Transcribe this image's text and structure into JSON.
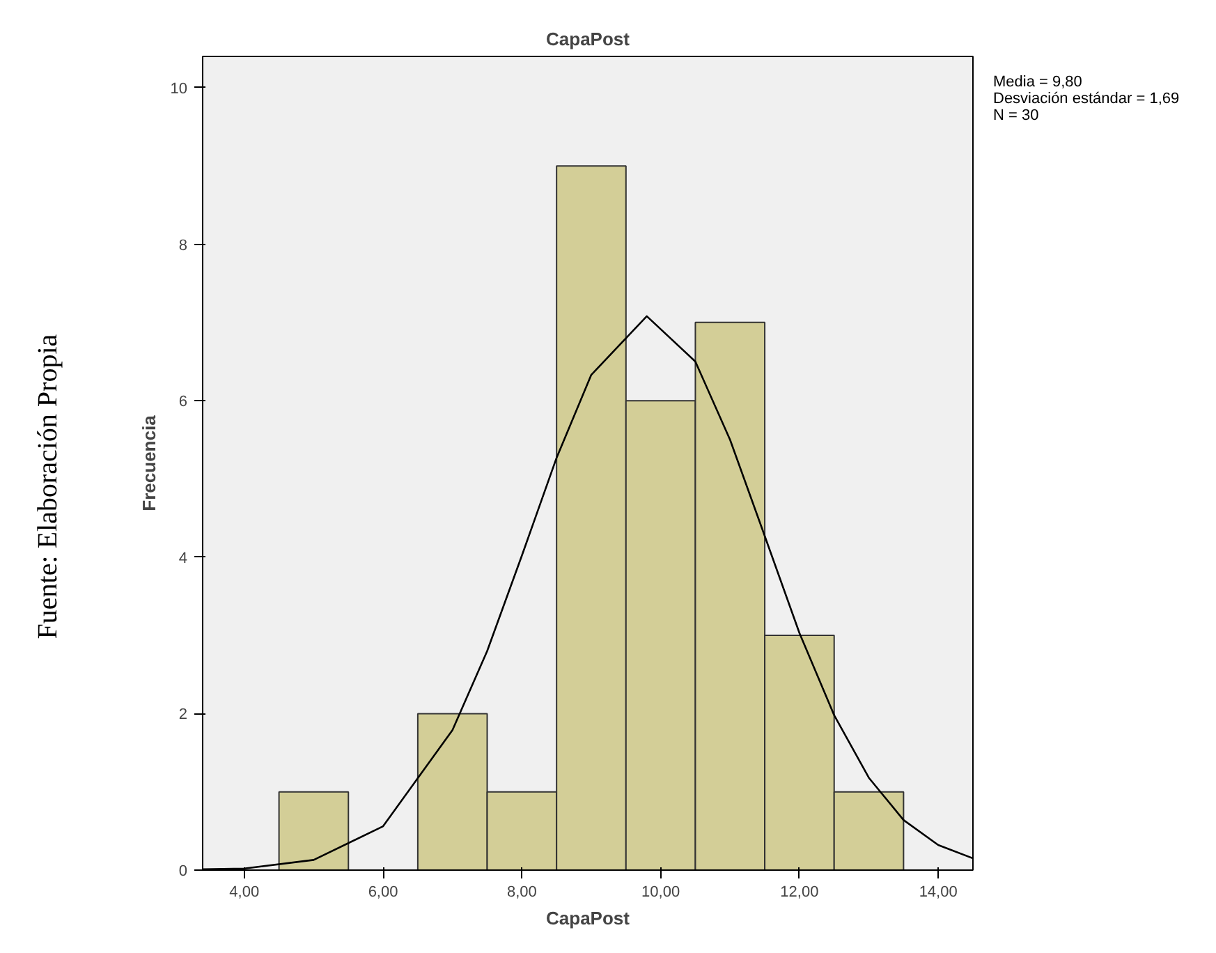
{
  "chart_data": {
    "type": "histogram",
    "title": "CapaPost",
    "xlabel": "CapaPost",
    "ylabel": "Frecuencia",
    "bins": [
      4.5,
      5.5,
      6.5,
      7.5,
      8.5,
      9.5,
      10.5,
      11.5,
      12.5,
      13.5
    ],
    "values": [
      1,
      0,
      2,
      1,
      9,
      6,
      7,
      3,
      1
    ],
    "color": "#d3ce97",
    "series": [
      {
        "type": "line",
        "color": "#000000",
        "x": [
          3.4,
          4,
          5,
          6,
          7,
          7.5,
          8,
          8.5,
          9,
          9.8,
          10.5,
          11,
          11.5,
          12,
          12.5,
          13,
          13.5,
          14,
          14.5
        ],
        "values": [
          0.01,
          0.02,
          0.13,
          0.56,
          1.79,
          2.8,
          4.02,
          5.27,
          6.33,
          7.08,
          6.5,
          5.5,
          4.27,
          3.03,
          1.98,
          1.18,
          0.64,
          0.32,
          0.15
        ]
      }
    ],
    "xlim": [
      3.4,
      14.5
    ],
    "ylim": [
      0,
      10.4
    ],
    "xticks": [
      {
        "value": 4,
        "label": "4,00"
      },
      {
        "value": 6,
        "label": "6,00"
      },
      {
        "value": 8,
        "label": "8,00"
      },
      {
        "value": 10,
        "label": "10,00"
      },
      {
        "value": 12,
        "label": "12,00"
      },
      {
        "value": 14,
        "label": "14,00"
      }
    ],
    "yticks": [
      0,
      2,
      4,
      6,
      8,
      10
    ],
    "annotations": [
      "Media = 9,80",
      "Desviación estándar = 1,69",
      "N = 30",
      "Fuente: Elaboración Propia"
    ]
  }
}
